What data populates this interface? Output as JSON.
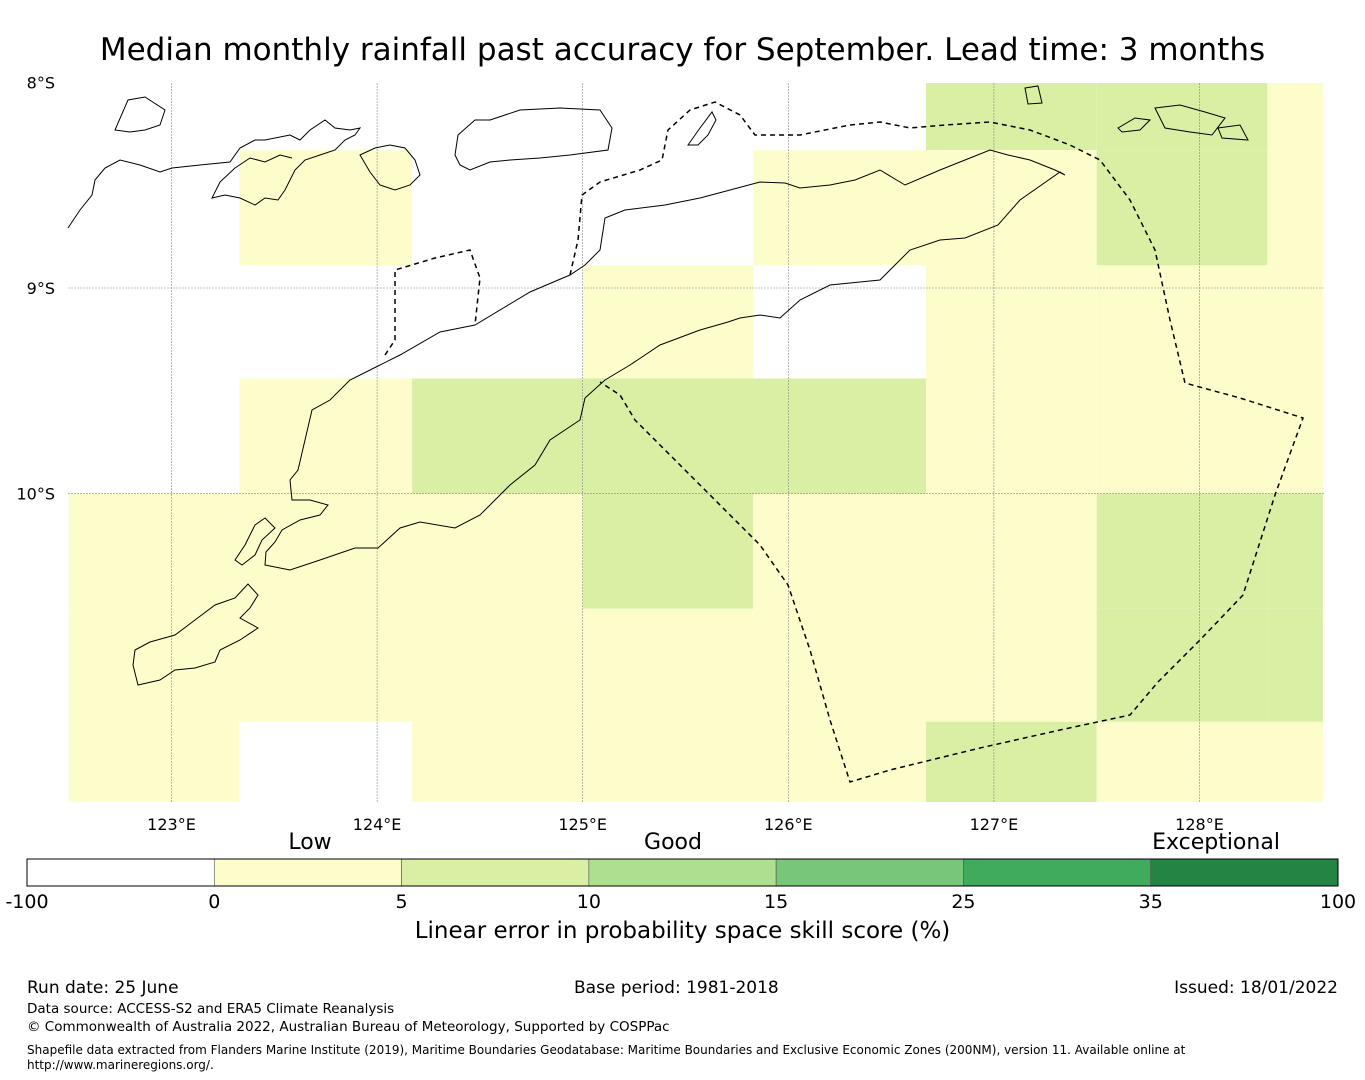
{
  "title": "Median monthly rainfall past accuracy for September. Lead time: 3 months",
  "map": {
    "lon_range": [
      122.5,
      128.6
    ],
    "lat_range": [
      -11.5,
      -8.0
    ],
    "lat_ticks": [
      {
        "value": -8,
        "label": "8°S"
      },
      {
        "value": -9,
        "label": "9°S"
      },
      {
        "value": -10,
        "label": "10°S"
      }
    ],
    "lon_ticks": [
      {
        "value": 123,
        "label": "123°E"
      },
      {
        "value": 124,
        "label": "124°E"
      },
      {
        "value": 125,
        "label": "125°E"
      },
      {
        "value": 126,
        "label": "126°E"
      },
      {
        "value": 127,
        "label": "127°E"
      },
      {
        "value": 128,
        "label": "128°E"
      }
    ],
    "grid_lines": true,
    "cell_colors": {
      "low": "#fdfdcb",
      "good": "#d9efa3",
      "none": "#ffffff"
    },
    "cells": [
      {
        "lon": [
          123.33,
          124.17
        ],
        "lat": [
          -8.33,
          -8.89
        ],
        "cat": "low"
      },
      {
        "lon": [
          124.17,
          125.0
        ],
        "lat": [
          -8.33,
          -8.89
        ],
        "cat": "none"
      },
      {
        "lon": [
          125.83,
          126.67
        ],
        "lat": [
          -8.33,
          -8.89
        ],
        "cat": "low"
      },
      {
        "lon": [
          126.67,
          127.5
        ],
        "lat": [
          -8.0,
          -8.33
        ],
        "cat": "good"
      },
      {
        "lon": [
          127.5,
          128.33
        ],
        "lat": [
          -8.0,
          -8.33
        ],
        "cat": "good"
      },
      {
        "lon": [
          128.33,
          128.6
        ],
        "lat": [
          -8.0,
          -8.33
        ],
        "cat": "low"
      },
      {
        "lon": [
          126.67,
          127.5
        ],
        "lat": [
          -8.33,
          -8.89
        ],
        "cat": "low"
      },
      {
        "lon": [
          127.5,
          128.33
        ],
        "lat": [
          -8.33,
          -8.89
        ],
        "cat": "good"
      },
      {
        "lon": [
          128.33,
          128.6
        ],
        "lat": [
          -8.33,
          -8.89
        ],
        "cat": "low"
      },
      {
        "lon": [
          125.0,
          125.83
        ],
        "lat": [
          -8.89,
          -9.44
        ],
        "cat": "low"
      },
      {
        "lon": [
          126.67,
          127.5
        ],
        "lat": [
          -8.89,
          -9.44
        ],
        "cat": "low"
      },
      {
        "lon": [
          127.5,
          128.33
        ],
        "lat": [
          -8.89,
          -9.44
        ],
        "cat": "low"
      },
      {
        "lon": [
          128.33,
          128.6
        ],
        "lat": [
          -8.89,
          -9.44
        ],
        "cat": "low"
      },
      {
        "lon": [
          123.33,
          124.17
        ],
        "lat": [
          -9.44,
          -10.0
        ],
        "cat": "low"
      },
      {
        "lon": [
          124.17,
          125.0
        ],
        "lat": [
          -9.44,
          -10.0
        ],
        "cat": "good"
      },
      {
        "lon": [
          125.0,
          125.83
        ],
        "lat": [
          -9.44,
          -10.0
        ],
        "cat": "good"
      },
      {
        "lon": [
          125.83,
          126.67
        ],
        "lat": [
          -9.44,
          -10.0
        ],
        "cat": "good"
      },
      {
        "lon": [
          126.67,
          127.5
        ],
        "lat": [
          -9.44,
          -10.0
        ],
        "cat": "low"
      },
      {
        "lon": [
          127.5,
          128.33
        ],
        "lat": [
          -9.44,
          -10.0
        ],
        "cat": "low"
      },
      {
        "lon": [
          128.33,
          128.6
        ],
        "lat": [
          -9.44,
          -10.0
        ],
        "cat": "low"
      },
      {
        "lon": [
          122.5,
          123.33
        ],
        "lat": [
          -10.0,
          -10.56
        ],
        "cat": "low"
      },
      {
        "lon": [
          123.33,
          124.17
        ],
        "lat": [
          -10.0,
          -10.56
        ],
        "cat": "low"
      },
      {
        "lon": [
          124.17,
          125.0
        ],
        "lat": [
          -10.0,
          -10.56
        ],
        "cat": "low"
      },
      {
        "lon": [
          125.0,
          125.83
        ],
        "lat": [
          -10.0,
          -10.56
        ],
        "cat": "good"
      },
      {
        "lon": [
          125.83,
          126.67
        ],
        "lat": [
          -10.0,
          -10.56
        ],
        "cat": "low"
      },
      {
        "lon": [
          126.67,
          127.5
        ],
        "lat": [
          -10.0,
          -10.56
        ],
        "cat": "low"
      },
      {
        "lon": [
          127.5,
          128.33
        ],
        "lat": [
          -10.0,
          -10.56
        ],
        "cat": "good"
      },
      {
        "lon": [
          128.33,
          128.6
        ],
        "lat": [
          -10.0,
          -10.56
        ],
        "cat": "good"
      },
      {
        "lon": [
          122.5,
          123.33
        ],
        "lat": [
          -10.56,
          -11.11
        ],
        "cat": "low"
      },
      {
        "lon": [
          123.33,
          124.17
        ],
        "lat": [
          -10.56,
          -11.11
        ],
        "cat": "low"
      },
      {
        "lon": [
          124.17,
          125.0
        ],
        "lat": [
          -10.56,
          -11.11
        ],
        "cat": "low"
      },
      {
        "lon": [
          125.0,
          125.83
        ],
        "lat": [
          -10.56,
          -11.11
        ],
        "cat": "low"
      },
      {
        "lon": [
          125.83,
          126.67
        ],
        "lat": [
          -10.56,
          -11.11
        ],
        "cat": "low"
      },
      {
        "lon": [
          126.67,
          127.5
        ],
        "lat": [
          -10.56,
          -11.11
        ],
        "cat": "low"
      },
      {
        "lon": [
          127.5,
          128.33
        ],
        "lat": [
          -10.56,
          -11.11
        ],
        "cat": "good"
      },
      {
        "lon": [
          128.33,
          128.6
        ],
        "lat": [
          -10.56,
          -11.11
        ],
        "cat": "good"
      },
      {
        "lon": [
          122.5,
          123.33
        ],
        "lat": [
          -11.11,
          -11.5
        ],
        "cat": "low"
      },
      {
        "lon": [
          124.17,
          125.0
        ],
        "lat": [
          -11.11,
          -11.5
        ],
        "cat": "low"
      },
      {
        "lon": [
          125.0,
          125.83
        ],
        "lat": [
          -11.11,
          -11.5
        ],
        "cat": "low"
      },
      {
        "lon": [
          125.83,
          126.67
        ],
        "lat": [
          -11.11,
          -11.5
        ],
        "cat": "low"
      },
      {
        "lon": [
          126.67,
          127.5
        ],
        "lat": [
          -11.11,
          -11.5
        ],
        "cat": "good"
      },
      {
        "lon": [
          127.5,
          128.33
        ],
        "lat": [
          -11.11,
          -11.5
        ],
        "cat": "low"
      },
      {
        "lon": [
          128.33,
          128.6
        ],
        "lat": [
          -11.11,
          -11.5
        ],
        "cat": "low"
      }
    ]
  },
  "colorbar": {
    "categories": [
      "Low",
      "Good",
      "Exceptional"
    ],
    "ticks": [
      "-100",
      "0",
      "5",
      "10",
      "15",
      "25",
      "35",
      "100"
    ],
    "colors": [
      "#ffffff",
      "#fdfdcb",
      "#d9efa3",
      "#addf8e",
      "#78c679",
      "#41ab5d",
      "#238443"
    ],
    "title": "Linear error in probability space skill score (%)"
  },
  "footer": {
    "run_date": "Run date: 25 June",
    "base_period": "Base period: 1981-2018",
    "issued": "Issued: 18/01/2022",
    "data_source": "Data source: ACCESS-S2 and ERA5 Climate Reanalysis",
    "copyright": "© Commonwealth of Australia 2022, Australian Bureau of Meteorology, Supported by COSPPac",
    "shapefile": "Shapefile data extracted from Flanders Marine Institute (2019), Maritime Boundaries Geodatabase: Maritime Boundaries and Exclusive Economic Zones (200NM), version 11. Available online at",
    "shapefile_url": "http://www.marineregions.org/."
  }
}
